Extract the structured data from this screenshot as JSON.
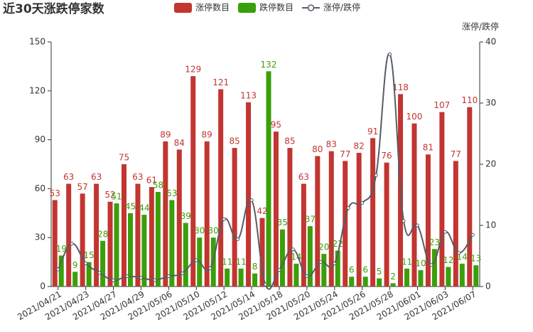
{
  "chart_data": {
    "type": "bar-line",
    "title": "近30天涨跌停家数",
    "y2label": "涨停/跌停",
    "categories": [
      "2021/04/21",
      null,
      "2021/04/23",
      null,
      "2021/04/27",
      null,
      "2021/04/29",
      null,
      "2021/05/06",
      null,
      "2021/05/10",
      null,
      "2021/05/12",
      null,
      "2021/05/14",
      null,
      "2021/05/18",
      null,
      "2021/05/20",
      null,
      "2021/05/24",
      null,
      "2021/05/26",
      null,
      "2021/05/28",
      null,
      "2021/06/01",
      null,
      "2021/06/03",
      null,
      "2021/06/07"
    ],
    "series": [
      {
        "name": "涨停数目",
        "type": "bar",
        "color": "#c23531",
        "values": [
          53,
          63,
          57,
          63,
          52,
          75,
          63,
          61,
          89,
          84,
          129,
          89,
          121,
          85,
          113,
          42,
          95,
          85,
          63,
          80,
          83,
          77,
          82,
          91,
          76,
          118,
          100,
          81,
          107,
          77,
          110
        ]
      },
      {
        "name": "跌停数目",
        "type": "bar",
        "color": "#3a9f0a",
        "values": [
          19,
          9,
          15,
          28,
          51,
          45,
          44,
          58,
          53,
          39,
          30,
          30,
          11,
          11,
          8,
          132,
          35,
          14,
          37,
          20,
          22,
          6,
          6,
          5,
          2,
          11,
          10,
          23,
          12,
          14,
          13
        ]
      },
      {
        "name": "涨停/跌停",
        "type": "line",
        "axis": "y2",
        "color": "#555d66",
        "values": [
          2.79,
          7,
          3.8,
          2.25,
          1.02,
          1.67,
          1.43,
          1.05,
          1.68,
          2.15,
          4.3,
          2.97,
          11,
          7.73,
          14.13,
          0.32,
          2.71,
          6.07,
          1.7,
          4,
          3.77,
          12.83,
          13.67,
          18.2,
          38,
          10.73,
          10,
          3.52,
          8.92,
          5.5,
          8.46
        ]
      }
    ],
    "ylim": [
      0,
      150
    ],
    "yticks": [
      0,
      30,
      60,
      90,
      120,
      150
    ],
    "y2lim": [
      0,
      40
    ],
    "y2ticks": [
      0,
      10,
      20,
      30,
      40
    ],
    "grid": false
  }
}
